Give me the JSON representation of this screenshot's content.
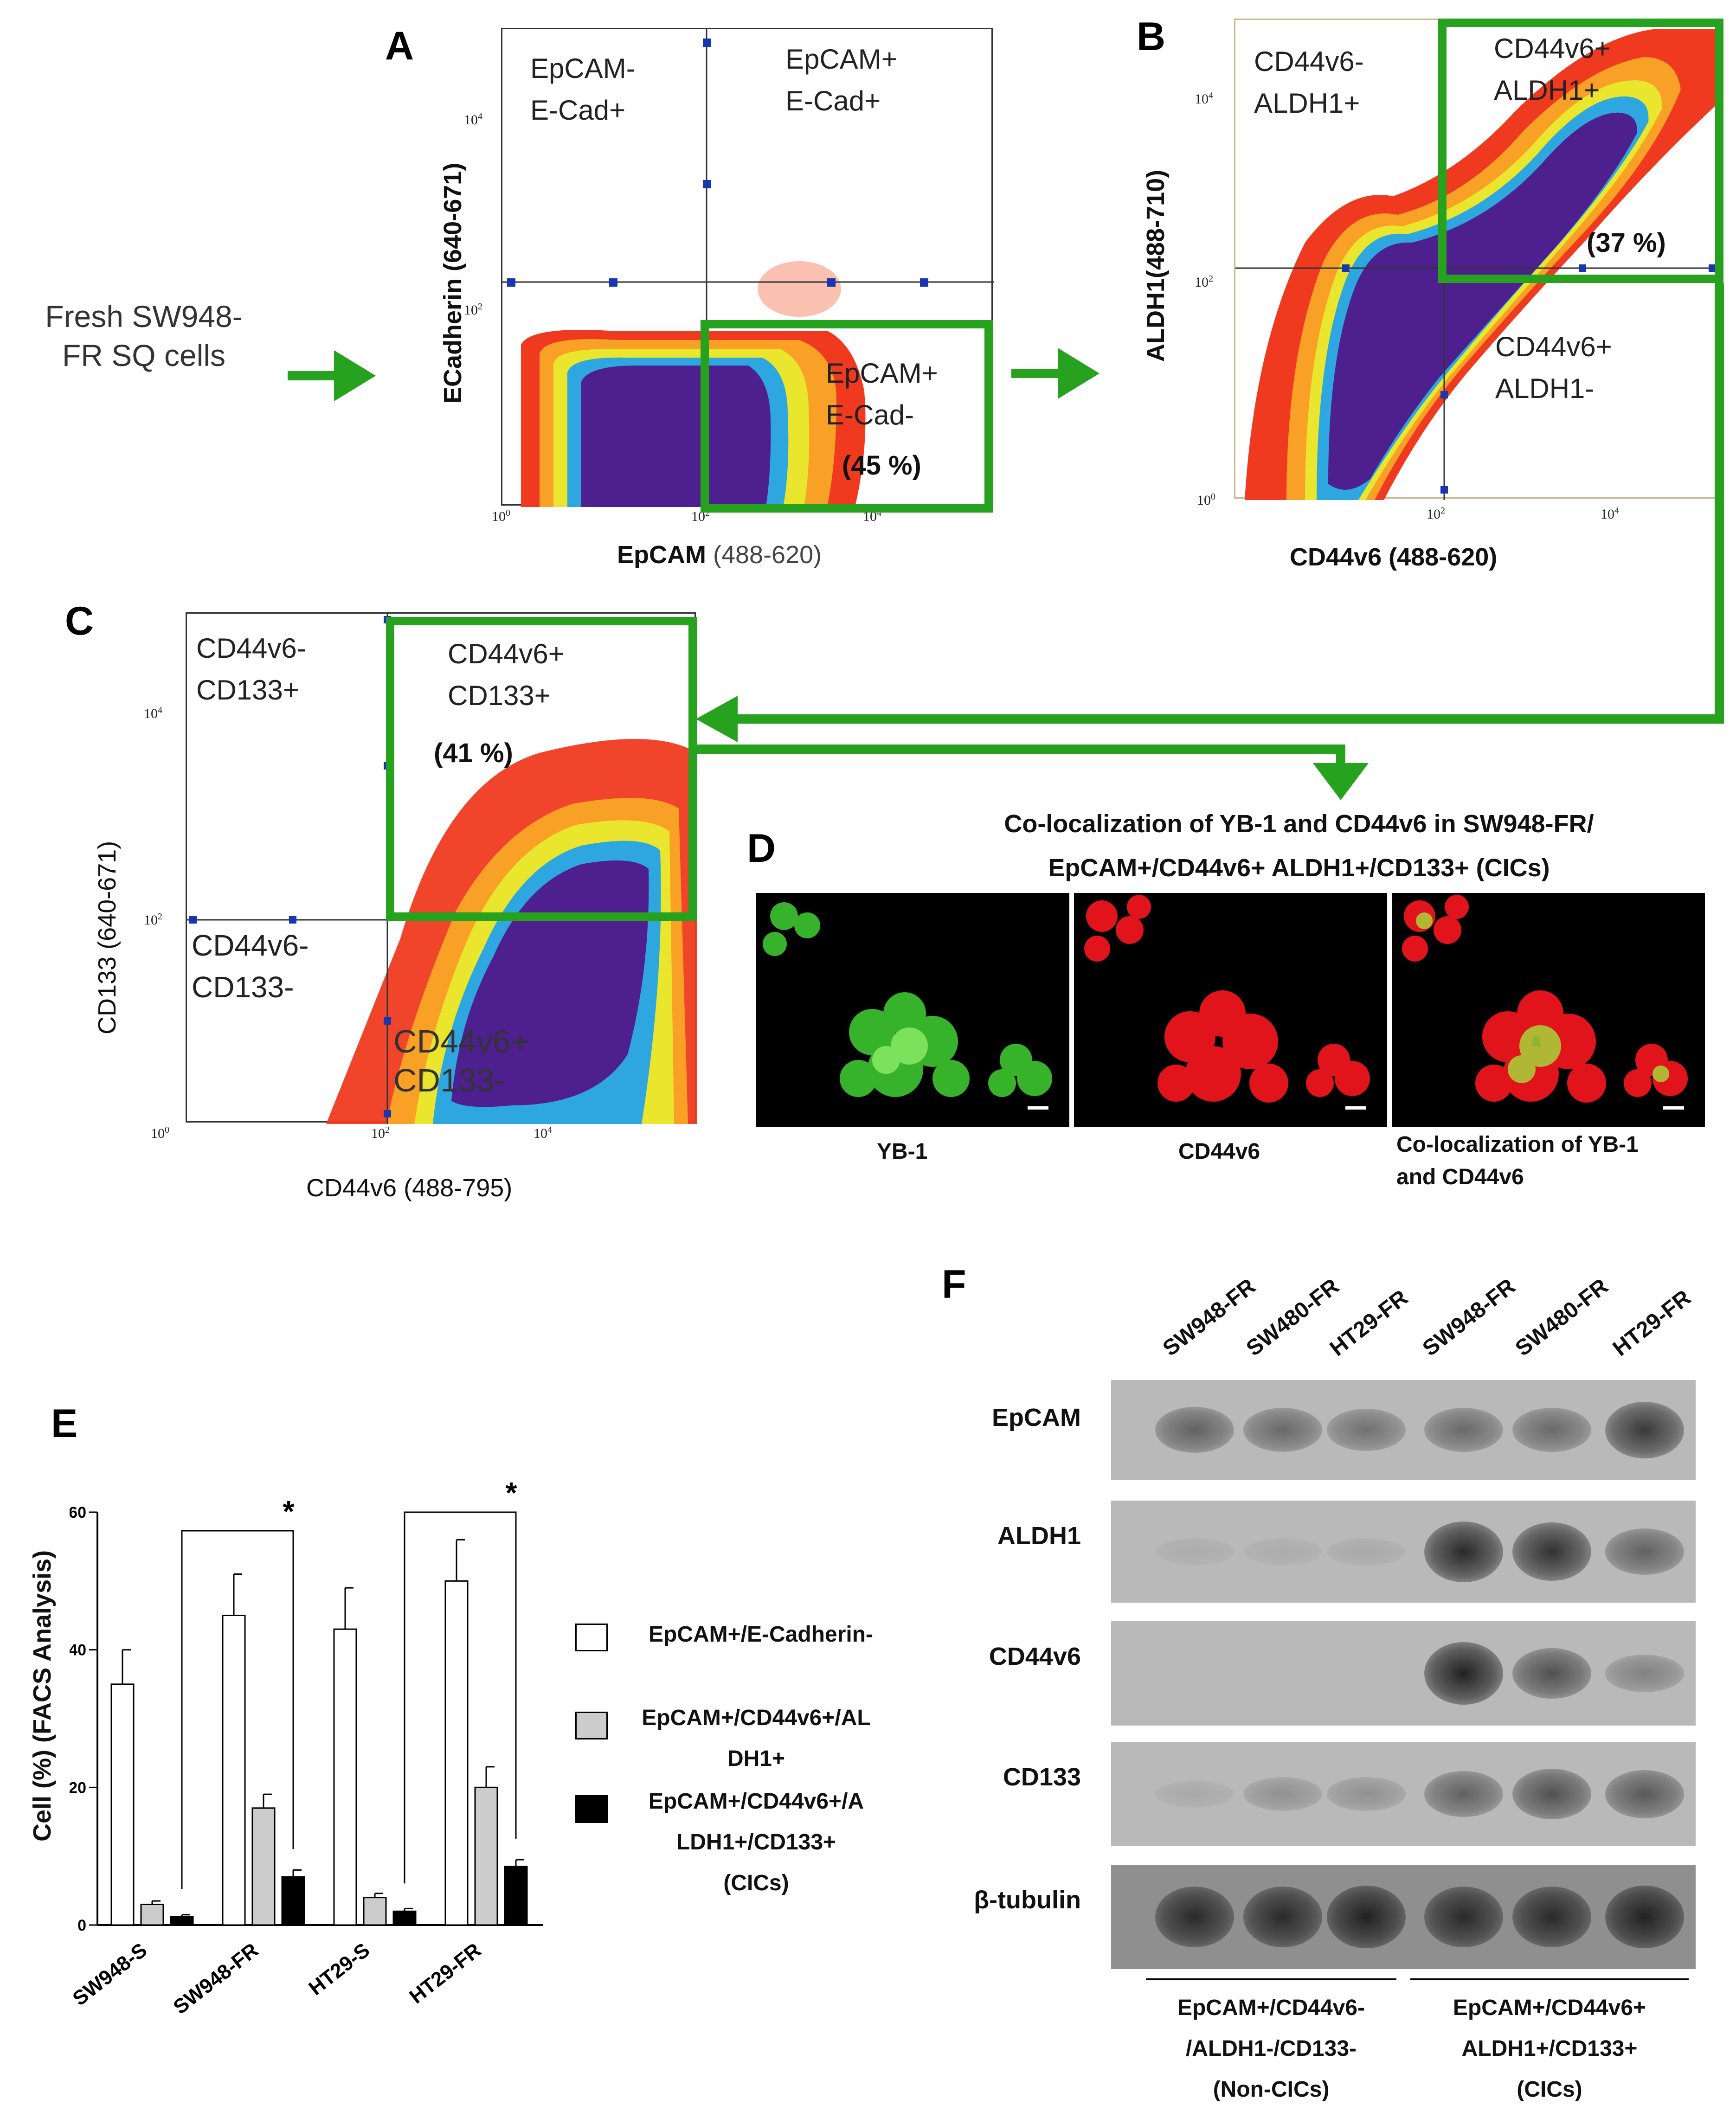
{
  "panels": {
    "A": {
      "letter": "A",
      "input_label_line1": "Fresh SW948-",
      "input_label_line2": "FR SQ cells",
      "quadrants": {
        "ul": [
          "EpCAM-",
          "E-Cad+"
        ],
        "ur": [
          "EpCAM+",
          "E-Cad+"
        ],
        "lr": [
          "EpCAM+",
          "E-Cad-"
        ]
      },
      "percent": "(45 %)",
      "xaxis_bold": "EpCAM",
      "xaxis_rest": "(488-620)",
      "yaxis_bold": "ECadherin (640-671)"
    },
    "B": {
      "letter": "B",
      "quadrants": {
        "ul": [
          "CD44v6-",
          "ALDH1+"
        ],
        "ur": [
          "CD44v6+",
          "ALDH1+"
        ],
        "lr": [
          "CD44v6+",
          "ALDH1-"
        ]
      },
      "percent": "(37 %)",
      "xaxis": "CD44v6  (488-620)",
      "yaxis": "ALDH1(488-710)"
    },
    "C": {
      "letter": "C",
      "quadrants": {
        "ul": [
          "CD44v6-",
          "CD133+"
        ],
        "ur": [
          "CD44v6+",
          "CD133+"
        ],
        "ll": [
          "CD44v6-",
          "CD133-"
        ],
        "lr": [
          "CD44v6+",
          "CD133-"
        ]
      },
      "percent": "(41 %)",
      "xaxis": "CD44v6  (488-795)",
      "yaxis": "CD133  (640-671)"
    },
    "D": {
      "letter": "D",
      "title_line1": "Co-localization of YB-1  and CD44v6  in SW948-FR/",
      "title_line2": "EpCAM+/CD44v6+ ALDH1+/CD133+  (CICs)",
      "captions": [
        "YB-1",
        "CD44v6",
        "Co-localization  of YB-1",
        "and CD44v6"
      ]
    },
    "E": {
      "letter": "E",
      "ylabel": "Cell (%) (FACS Analysis)",
      "significance": "*",
      "legend": [
        {
          "lines": [
            "EpCAM+/E-Cadherin-"
          ],
          "color": "#ffffff"
        },
        {
          "lines": [
            "EpCAM+/CD44v6+/AL",
            "DH1+"
          ],
          "color": "#cccccc"
        },
        {
          "lines": [
            "EpCAM+/CD44v6+/A",
            "LDH1+/CD133+",
            "(CICs)"
          ],
          "color": "#000000"
        }
      ]
    },
    "F": {
      "letter": "F",
      "lanes": [
        "SW948-FR",
        "SW480-FR",
        "HT29-FR",
        "SW948-FR",
        "SW480-FR",
        "HT29-FR"
      ],
      "proteins": [
        "EpCAM",
        "ALDH1",
        "CD44v6",
        "CD133",
        "β-tubulin"
      ],
      "group1": [
        "EpCAM+/CD44v6-",
        "/ALDH1-/CD133-",
        "(Non-CICs)"
      ],
      "group2": [
        "EpCAM+/CD44v6+",
        "ALDH1+/CD133+",
        "(CICs)"
      ]
    }
  },
  "ticks": {
    "ten": "10",
    "e0": "0",
    "e2": "2",
    "e4": "4"
  },
  "chart_data": {
    "type": "bar",
    "categories": [
      "SW948-S",
      "SW948-FR",
      "HT29-S",
      "HT29-FR"
    ],
    "series": [
      {
        "name": "EpCAM+/E-Cadherin-",
        "values": [
          35,
          45,
          43,
          50
        ],
        "errors": [
          5,
          6,
          6,
          6
        ]
      },
      {
        "name": "EpCAM+/CD44v6+/ALDH1+",
        "values": [
          3,
          17,
          4,
          20
        ],
        "errors": [
          0.5,
          2,
          0.6,
          3
        ]
      },
      {
        "name": "EpCAM+/CD44v6+/ALDH1+/CD133+ (CICs)",
        "values": [
          1.2,
          7,
          2,
          8.5
        ],
        "errors": [
          0.3,
          1,
          0.4,
          1
        ]
      }
    ],
    "ylabel": "Cell (%) (FACS Analysis)",
    "yticks": [
      "0",
      "20",
      "40",
      "60"
    ],
    "ylim": [
      0,
      60
    ],
    "colors": [
      "#ffffff",
      "#cccccc",
      "#000000"
    ]
  },
  "western_blot": {
    "intensity": [
      [
        0.55,
        0.5,
        0.45,
        0.5,
        0.5,
        0.8
      ],
      [
        0.08,
        0.08,
        0.1,
        0.9,
        0.85,
        0.55
      ],
      [
        0,
        0,
        0,
        0.95,
        0.65,
        0.35
      ],
      [
        0.1,
        0.25,
        0.25,
        0.55,
        0.65,
        0.6
      ],
      [
        0.9,
        0.9,
        0.95,
        0.9,
        0.9,
        0.95
      ]
    ]
  }
}
